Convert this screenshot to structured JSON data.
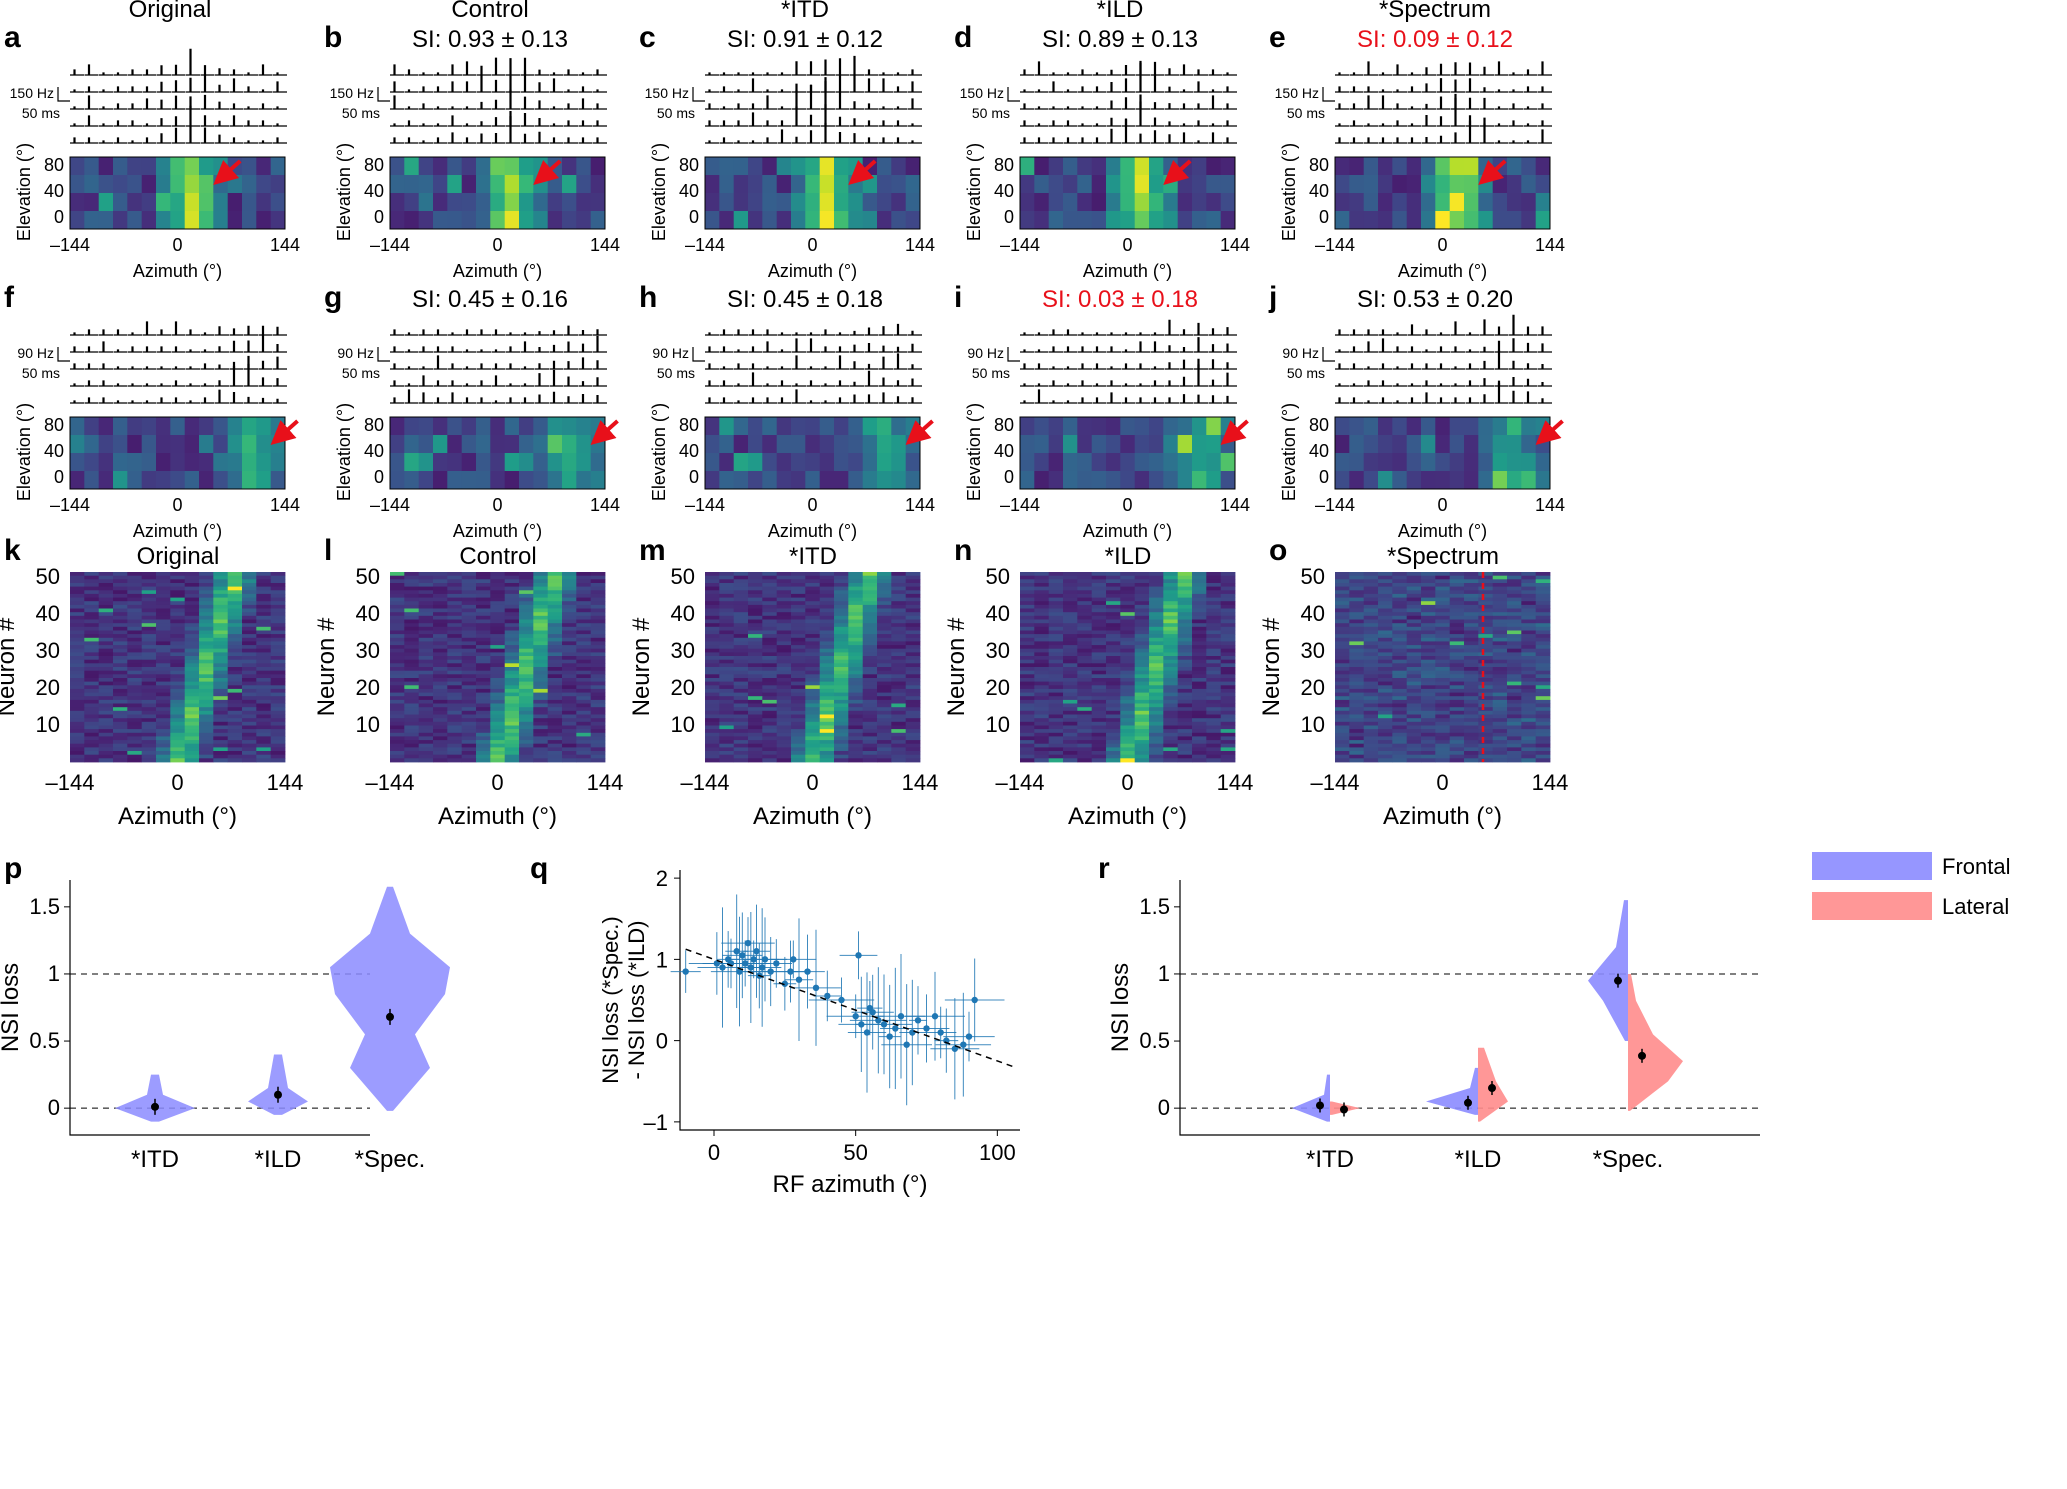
{
  "figure": {
    "colors": {
      "accent_red": "#e8101a",
      "frontal": "#8b8bff",
      "lateral": "#ff8c8c",
      "scatter": "#1f77b4"
    },
    "row1": {
      "scale": [
        "150 Hz",
        "50 ms"
      ],
      "panels": [
        {
          "letter": "a",
          "title": "Original",
          "si": "",
          "red": false
        },
        {
          "letter": "b",
          "title": "Control",
          "si": "SI: 0.93 ± 0.13",
          "red": false
        },
        {
          "letter": "c",
          "title": "*ITD",
          "si": "SI: 0.91 ± 0.12",
          "red": false
        },
        {
          "letter": "d",
          "title": "*ILD",
          "si": "SI: 0.89 ± 0.13",
          "red": false
        },
        {
          "letter": "e",
          "title": "*Spectrum",
          "si": "SI: 0.09 ± 0.12",
          "red": true
        }
      ]
    },
    "row2": {
      "scale": [
        "90 Hz",
        "50 ms"
      ],
      "panels": [
        {
          "letter": "f",
          "si": "",
          "red": false
        },
        {
          "letter": "g",
          "si": "SI: 0.45 ± 0.16",
          "red": false
        },
        {
          "letter": "h",
          "si": "SI: 0.45 ± 0.18",
          "red": false
        },
        {
          "letter": "i",
          "si": "SI: 0.03 ± 0.18",
          "red": true
        },
        {
          "letter": "j",
          "si": "SI: 0.53 ± 0.20",
          "red": false
        }
      ]
    },
    "rf_axes": {
      "ylabel": "Elevation (°)",
      "xlabel": "Azimuth (°)",
      "yticks": [
        "80",
        "40",
        "0"
      ],
      "xticks": [
        "–144",
        "0",
        "144"
      ]
    },
    "row3": {
      "panels": [
        {
          "letter": "k",
          "title": "Original"
        },
        {
          "letter": "l",
          "title": "Control"
        },
        {
          "letter": "m",
          "title": "*ITD"
        },
        {
          "letter": "n",
          "title": "*ILD"
        },
        {
          "letter": "o",
          "title": "*Spectrum"
        }
      ],
      "ylabel": "Neuron #",
      "xlabel": "Azimuth (°)",
      "yticks": [
        "50",
        "40",
        "30",
        "20",
        "10"
      ],
      "xticks": [
        "–144",
        "0",
        "144"
      ]
    }
  },
  "chart_data": [
    {
      "id": "p",
      "type": "violin",
      "ylabel": "NSI loss",
      "ylim": [
        -0.2,
        1.7
      ],
      "yticks": [
        "1.5",
        "1",
        "0.5",
        "0"
      ],
      "categories": [
        "*ITD",
        "*ILD",
        "*Spec."
      ],
      "means": [
        0.01,
        0.1,
        0.68
      ],
      "reference_lines": [
        0,
        1
      ]
    },
    {
      "id": "q",
      "type": "scatter",
      "xlabel": "RF azimuth (°)",
      "ylabel": "NSI loss (*Spec.)",
      "ylabel2": "- NSI loss (*ILD)",
      "xlim": [
        -12,
        108
      ],
      "ylim": [
        -1.1,
        2.1
      ],
      "xticks": [
        "0",
        "50",
        "100"
      ],
      "yticks": [
        "2",
        "1",
        "0",
        "–1"
      ],
      "fit": {
        "slope": -0.0125,
        "intercept": 1.0
      },
      "points": [
        [
          -10,
          0.85
        ],
        [
          1,
          0.95
        ],
        [
          3,
          0.9
        ],
        [
          5,
          1.0
        ],
        [
          6,
          0.95
        ],
        [
          8,
          1.1
        ],
        [
          9,
          0.85
        ],
        [
          10,
          1.05
        ],
        [
          11,
          0.95
        ],
        [
          12,
          1.2
        ],
        [
          13,
          0.9
        ],
        [
          14,
          1.0
        ],
        [
          15,
          1.1
        ],
        [
          16,
          0.8
        ],
        [
          17,
          0.9
        ],
        [
          18,
          1.0
        ],
        [
          20,
          0.85
        ],
        [
          22,
          0.95
        ],
        [
          25,
          0.7
        ],
        [
          27,
          0.85
        ],
        [
          28,
          1.0
        ],
        [
          30,
          0.75
        ],
        [
          33,
          0.85
        ],
        [
          36,
          0.65
        ],
        [
          40,
          0.55
        ],
        [
          45,
          0.5
        ],
        [
          50,
          0.3
        ],
        [
          51,
          1.05
        ],
        [
          52,
          0.2
        ],
        [
          54,
          0.1
        ],
        [
          55,
          0.4
        ],
        [
          56,
          0.35
        ],
        [
          58,
          0.25
        ],
        [
          60,
          0.2
        ],
        [
          62,
          0.05
        ],
        [
          64,
          0.15
        ],
        [
          66,
          0.3
        ],
        [
          68,
          -0.05
        ],
        [
          70,
          0.1
        ],
        [
          72,
          0.25
        ],
        [
          75,
          0.15
        ],
        [
          78,
          0.3
        ],
        [
          80,
          0.1
        ],
        [
          82,
          0.0
        ],
        [
          85,
          -0.1
        ],
        [
          88,
          -0.05
        ],
        [
          90,
          0.05
        ],
        [
          92,
          0.5
        ]
      ]
    },
    {
      "id": "r",
      "type": "split-violin",
      "ylabel": "NSI loss",
      "ylim": [
        -0.2,
        1.7
      ],
      "yticks": [
        "1.5",
        "1",
        "0.5",
        "0"
      ],
      "categories": [
        "*ITD",
        "*ILD",
        "*Spec."
      ],
      "series": [
        {
          "name": "Frontal",
          "means": [
            0.02,
            0.04,
            0.95
          ]
        },
        {
          "name": "Lateral",
          "means": [
            -0.01,
            0.15,
            0.39
          ]
        }
      ],
      "reference_lines": [
        0,
        1
      ]
    }
  ]
}
